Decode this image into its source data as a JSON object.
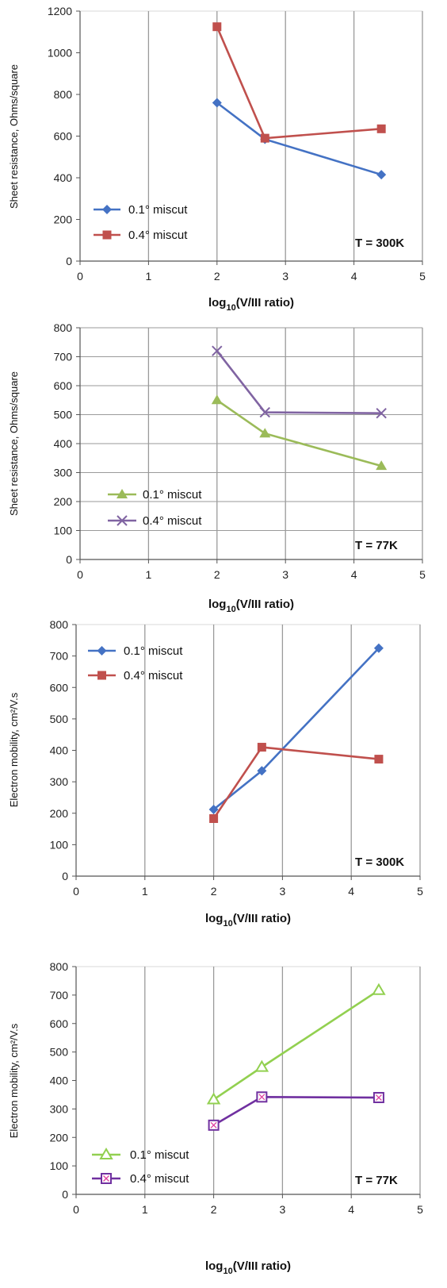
{
  "chart_data": [
    {
      "type": "line",
      "ylabel": "Sheet resistance, Ohms/square",
      "xlabel_main": "log",
      "xlabel_sub": "10",
      "xlabel_rest": "(V/III ratio)",
      "xlim": [
        0,
        5
      ],
      "ylim": [
        0,
        1200
      ],
      "xticks": [
        0,
        1,
        2,
        3,
        4,
        5
      ],
      "yticks": [
        0,
        200,
        400,
        600,
        800,
        1000,
        1200
      ],
      "grid": "vertical",
      "legend_position": "bottom-left",
      "annotation": "T = 300K",
      "series": [
        {
          "name": "0.1° miscut",
          "color": "#4472C4",
          "marker": "diamond",
          "x": [
            2,
            2.7,
            4.4
          ],
          "y": [
            760,
            585,
            415
          ]
        },
        {
          "name": "0.4° miscut",
          "color": "#C0504D",
          "marker": "square",
          "x": [
            2,
            2.7,
            4.4
          ],
          "y": [
            1125,
            590,
            635
          ]
        }
      ]
    },
    {
      "type": "line",
      "ylabel": "Sheet resistance, Ohms/square",
      "xlabel_main": "log",
      "xlabel_sub": "10",
      "xlabel_rest": "(V/III ratio)",
      "xlim": [
        0,
        5
      ],
      "ylim": [
        0,
        800
      ],
      "xticks": [
        0,
        1,
        2,
        3,
        4,
        5
      ],
      "yticks": [
        0,
        100,
        200,
        300,
        400,
        500,
        600,
        700,
        800
      ],
      "grid": "both",
      "legend_position": "bottom-left",
      "annotation": "T = 77K",
      "series": [
        {
          "name": "0.1° miscut",
          "color": "#9BBB59",
          "marker": "triangle",
          "x": [
            2,
            2.7,
            4.4
          ],
          "y": [
            550,
            435,
            323
          ]
        },
        {
          "name": "0.4° miscut",
          "color": "#8064A2",
          "marker": "x",
          "x": [
            2,
            2.7,
            4.4
          ],
          "y": [
            720,
            508,
            505
          ]
        }
      ]
    },
    {
      "type": "line",
      "ylabel": "Electron mobility, cm²/V.s",
      "xlabel_main": "log",
      "xlabel_sub": "10",
      "xlabel_rest": "(V/III ratio)",
      "xlim": [
        0,
        5
      ],
      "ylim": [
        0,
        800
      ],
      "xticks": [
        0,
        1,
        2,
        3,
        4,
        5
      ],
      "yticks": [
        0,
        100,
        200,
        300,
        400,
        500,
        600,
        700,
        800
      ],
      "grid": "vertical",
      "legend_position": "top-left",
      "annotation": "T = 300K",
      "series": [
        {
          "name": "0.1° miscut",
          "color": "#4472C4",
          "marker": "diamond",
          "x": [
            2,
            2.7,
            4.4
          ],
          "y": [
            212,
            335,
            725
          ]
        },
        {
          "name": "0.4° miscut",
          "color": "#C0504D",
          "marker": "square",
          "x": [
            2,
            2.7,
            4.4
          ],
          "y": [
            183,
            410,
            372
          ]
        }
      ]
    },
    {
      "type": "line",
      "ylabel": "Electron mobility, cm²/V.s",
      "xlabel_main": "log",
      "xlabel_sub": "10",
      "xlabel_rest": "(V/III ratio)",
      "xlim": [
        0,
        5
      ],
      "ylim": [
        0,
        800
      ],
      "xticks": [
        0,
        1,
        2,
        3,
        4,
        5
      ],
      "yticks": [
        0,
        100,
        200,
        300,
        400,
        500,
        600,
        700,
        800
      ],
      "grid": "vertical",
      "legend_position": "bottom-left",
      "annotation": "T = 77K",
      "series": [
        {
          "name": "0.1° miscut",
          "color": "#92D050",
          "marker": "open-triangle",
          "x": [
            2,
            2.7,
            4.4
          ],
          "y": [
            333,
            447,
            717
          ]
        },
        {
          "name": "0.4° miscut",
          "color": "#7030A0",
          "marker": "open-square-x",
          "x": [
            2,
            2.7,
            4.4
          ],
          "y": [
            243,
            342,
            340
          ]
        }
      ]
    }
  ]
}
